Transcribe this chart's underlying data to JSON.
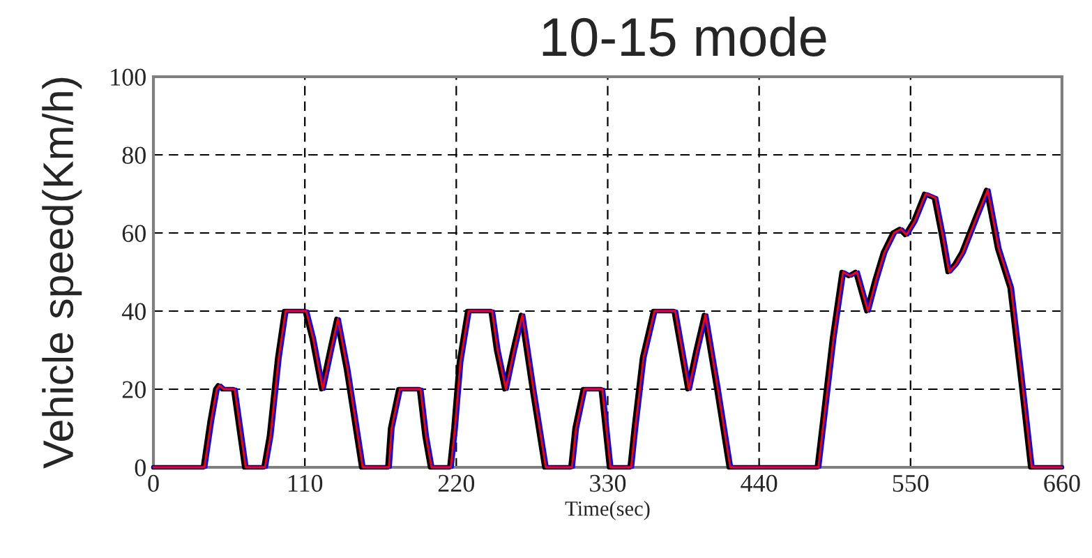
{
  "chart_data": {
    "type": "line",
    "title": "10-15 mode",
    "xlabel": "Time(sec)",
    "ylabel": "Vehicle speed(Km/h)",
    "xlim": [
      0,
      660
    ],
    "xticks": [
      0,
      110,
      220,
      330,
      440,
      550,
      660
    ],
    "ylim": [
      0,
      100
    ],
    "yticks": [
      0,
      20,
      40,
      60,
      80,
      100
    ],
    "grid": true,
    "series": [
      {
        "color": "#ff0000",
        "x": [
          0,
          37,
          42,
          46,
          48,
          51,
          59,
          63,
          67,
          81,
          85,
          91,
          96,
          111,
          116,
          123,
          129,
          134,
          141,
          152,
          171,
          173,
          179,
          194,
          198,
          202,
          216,
          219,
          223,
          229,
          246,
          250,
          256,
          262,
          268,
          276,
          285,
          304,
          307,
          313,
          326,
          332,
          347,
          350,
          356,
          364,
          379,
          384,
          389,
          395,
          401,
          410,
          419,
          483,
          487,
          494,
          501,
          506,
          511,
          515,
          519,
          525,
          531,
          538,
          543,
          547,
          553,
          561,
          568,
          573,
          578,
          583,
          588,
          598,
          606,
          614,
          623,
          631,
          638,
          660
        ],
        "values": [
          0,
          0,
          12,
          20,
          21,
          20,
          20,
          10,
          0,
          0,
          8,
          28,
          40,
          40,
          33,
          20,
          30,
          38,
          25,
          0,
          0,
          10,
          20,
          20,
          8,
          0,
          0,
          10,
          27,
          40,
          40,
          30,
          20,
          30,
          39,
          20,
          0,
          0,
          10,
          20,
          20,
          0,
          0,
          10,
          28,
          40,
          40,
          30,
          20,
          30,
          39,
          20,
          0,
          0,
          12,
          33,
          50,
          49,
          50,
          45,
          40,
          48,
          55,
          60,
          61,
          59.5,
          63,
          70,
          69,
          60,
          50,
          52,
          55,
          64,
          71,
          56,
          46,
          22,
          0,
          0
        ]
      },
      {
        "color": "#0000ff",
        "x": [
          0,
          38,
          43,
          47,
          49,
          52,
          60,
          64,
          68,
          82,
          86,
          92,
          97,
          112,
          117,
          124,
          130,
          135,
          142,
          153,
          172,
          174,
          180,
          195,
          199,
          203,
          217,
          220,
          224,
          230,
          247,
          251,
          257,
          263,
          269,
          277,
          286,
          305,
          308,
          314,
          327,
          333,
          348,
          351,
          357,
          365,
          380,
          385,
          390,
          396,
          402,
          411,
          420,
          484,
          488,
          495,
          502,
          507,
          512,
          516,
          520,
          526,
          532,
          539,
          544,
          548,
          554,
          562,
          569,
          574,
          579,
          584,
          589,
          599,
          607,
          615,
          624,
          632,
          639,
          660
        ],
        "values": [
          0,
          0,
          12,
          20,
          21,
          20,
          20,
          10,
          0,
          0,
          8,
          28,
          40,
          40,
          33,
          20,
          30,
          38,
          25,
          0,
          0,
          10,
          20,
          20,
          8,
          0,
          0,
          10,
          27,
          40,
          40,
          30,
          20,
          30,
          39,
          20,
          0,
          0,
          10,
          20,
          20,
          0,
          0,
          10,
          28,
          40,
          40,
          30,
          20,
          30,
          39,
          20,
          0,
          0,
          12,
          33,
          50,
          49,
          50,
          45,
          40,
          48,
          55,
          60,
          61,
          59.5,
          63,
          70,
          69,
          60,
          50,
          52,
          55,
          64,
          71,
          56,
          46,
          22,
          0,
          0
        ]
      },
      {
        "color": "#000000",
        "x": [
          0,
          36,
          41,
          45,
          47,
          50,
          58,
          62,
          66,
          80,
          84,
          90,
          95,
          110,
          115,
          122,
          128,
          133,
          140,
          151,
          170,
          172,
          178,
          193,
          197,
          201,
          215,
          218,
          222,
          228,
          245,
          249,
          255,
          261,
          267,
          275,
          284,
          303,
          306,
          312,
          325,
          331,
          346,
          349,
          355,
          363,
          378,
          383,
          388,
          394,
          400,
          409,
          418,
          482,
          486,
          493,
          500,
          505,
          510,
          514,
          518,
          524,
          530,
          537,
          542,
          546,
          552,
          560,
          567,
          572,
          577,
          582,
          587,
          597,
          605,
          613,
          622,
          630,
          637,
          660
        ],
        "values": [
          0,
          0,
          12,
          20,
          21,
          20,
          20,
          10,
          0,
          0,
          8,
          28,
          40,
          40,
          33,
          20,
          30,
          38,
          25,
          0,
          0,
          10,
          20,
          20,
          8,
          0,
          0,
          10,
          27,
          40,
          40,
          30,
          20,
          30,
          39,
          20,
          0,
          0,
          10,
          20,
          20,
          0,
          0,
          10,
          28,
          40,
          40,
          30,
          20,
          30,
          39,
          20,
          0,
          0,
          12,
          33,
          50,
          49,
          50,
          45,
          40,
          48,
          55,
          60,
          61,
          59.5,
          63,
          70,
          69,
          60,
          50,
          52,
          55,
          64,
          71,
          56,
          46,
          22,
          0,
          0
        ]
      }
    ]
  }
}
